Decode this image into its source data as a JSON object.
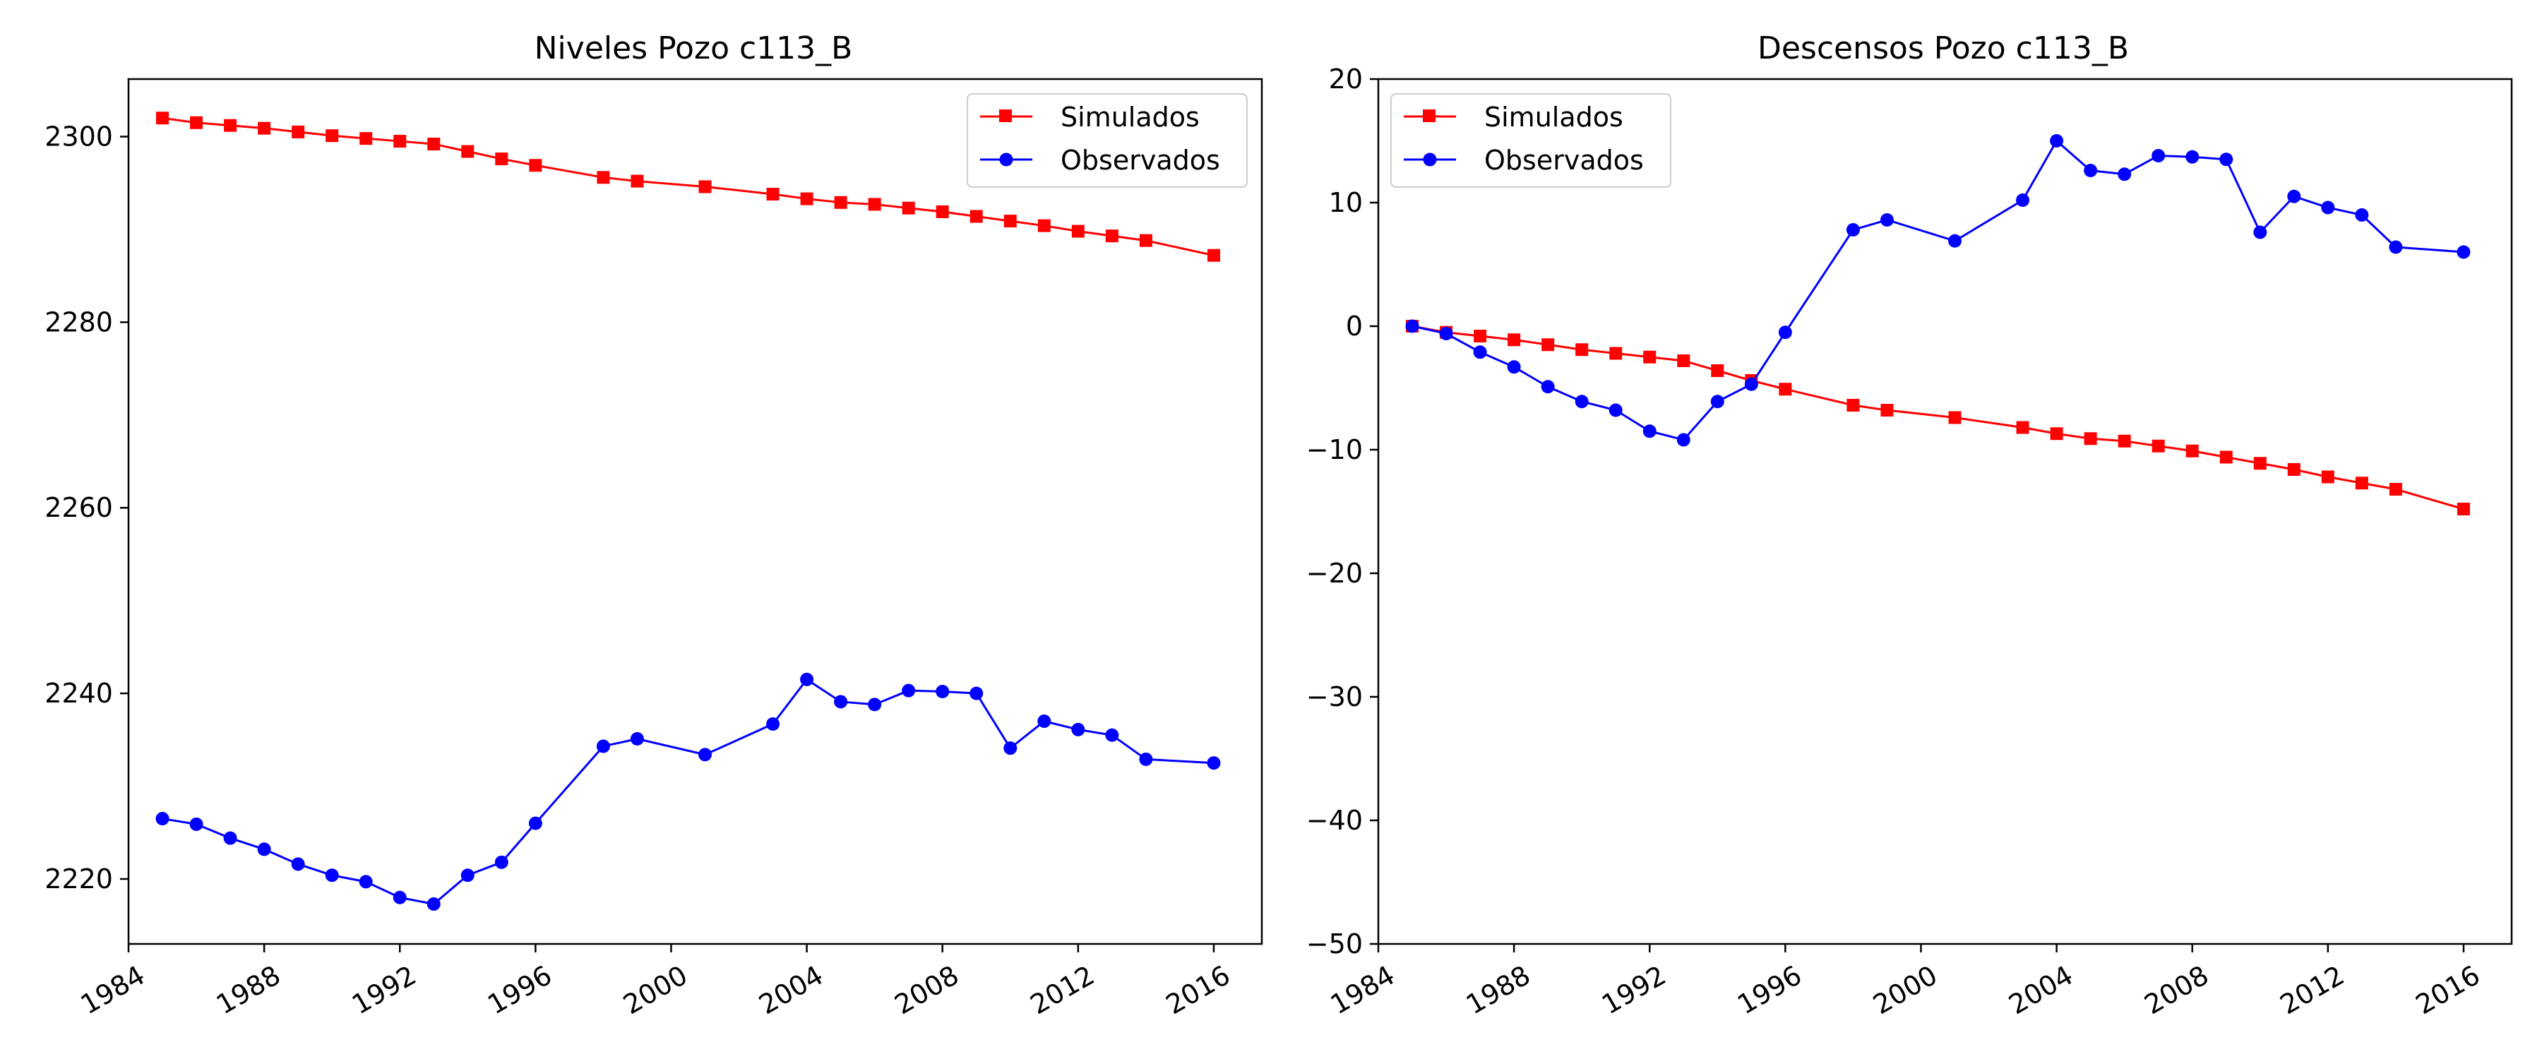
{
  "chart_data": [
    {
      "type": "line",
      "title": "Niveles Pozo c113_B",
      "xlabel": "",
      "ylabel": "",
      "xlim": [
        "1984-01-01",
        "2017-06-01"
      ],
      "ylim": [
        2213,
        2306.2
      ],
      "x_ticks": [
        "1984",
        "1988",
        "1992",
        "1996",
        "2000",
        "2004",
        "2008",
        "2012",
        "2016"
      ],
      "y_ticks": [
        2220,
        2240,
        2260,
        2280,
        2300
      ],
      "legend": "top-right",
      "grid": false,
      "series": [
        {
          "name": "Simulados",
          "color": "#ff0000",
          "marker": "square",
          "x": [
            "1985",
            "1986",
            "1987",
            "1988",
            "1989",
            "1990",
            "1991",
            "1992",
            "1993",
            "1994",
            "1995",
            "1996",
            "1998",
            "1999",
            "2001",
            "2003",
            "2004",
            "2005",
            "2006",
            "2007",
            "2008",
            "2009",
            "2010",
            "2011",
            "2012",
            "2013",
            "2014",
            "2016"
          ],
          "values": [
            2302.0,
            2301.5,
            2301.2,
            2300.9,
            2300.5,
            2300.1,
            2299.8,
            2299.5,
            2299.2,
            2298.4,
            2297.6,
            2296.9,
            2295.6,
            2295.2,
            2294.6,
            2293.8,
            2293.3,
            2292.9,
            2292.7,
            2292.3,
            2291.9,
            2291.4,
            2290.9,
            2290.4,
            2289.8,
            2289.3,
            2288.8,
            2287.2
          ]
        },
        {
          "name": "Observados",
          "color": "#0000ff",
          "marker": "circle",
          "x": [
            "1985",
            "1986",
            "1987",
            "1988",
            "1989",
            "1990",
            "1991",
            "1992",
            "1993",
            "1994",
            "1995",
            "1996",
            "1998",
            "1999",
            "2001",
            "2003",
            "2004",
            "2005",
            "2006",
            "2007",
            "2008",
            "2009",
            "2010",
            "2011",
            "2012",
            "2013",
            "2014",
            "2016"
          ],
          "values": [
            2226.5,
            2225.9,
            2224.4,
            2223.2,
            2221.6,
            2220.4,
            2219.7,
            2218.0,
            2217.3,
            2220.4,
            2221.8,
            2226.0,
            2234.3,
            2235.1,
            2233.4,
            2236.7,
            2241.5,
            2239.1,
            2238.8,
            2240.3,
            2240.2,
            2240.0,
            2234.1,
            2237.0,
            2236.1,
            2235.5,
            2232.9,
            2232.5
          ]
        }
      ]
    },
    {
      "type": "line",
      "title": "Descensos Pozo c113_B",
      "xlabel": "",
      "ylabel": "",
      "xlim": [
        "1984-01-01",
        "2017-06-01"
      ],
      "ylim": [
        -50,
        20
      ],
      "x_ticks": [
        "1984",
        "1988",
        "1992",
        "1996",
        "2000",
        "2004",
        "2008",
        "2012",
        "2016"
      ],
      "y_ticks": [
        -50,
        -40,
        -30,
        -20,
        -10,
        0,
        10,
        20
      ],
      "legend": "top-left",
      "grid": false,
      "series": [
        {
          "name": "Simulados",
          "color": "#ff0000",
          "marker": "square",
          "x": [
            "1985",
            "1986",
            "1987",
            "1988",
            "1989",
            "1990",
            "1991",
            "1992",
            "1993",
            "1994",
            "1995",
            "1996",
            "1998",
            "1999",
            "2001",
            "2003",
            "2004",
            "2005",
            "2006",
            "2007",
            "2008",
            "2009",
            "2010",
            "2011",
            "2012",
            "2013",
            "2014",
            "2016"
          ],
          "values": [
            0.0,
            -0.5,
            -0.8,
            -1.1,
            -1.5,
            -1.9,
            -2.2,
            -2.5,
            -2.8,
            -3.6,
            -4.4,
            -5.1,
            -6.4,
            -6.8,
            -7.4,
            -8.2,
            -8.7,
            -9.1,
            -9.3,
            -9.7,
            -10.1,
            -10.6,
            -11.1,
            -11.6,
            -12.2,
            -12.7,
            -13.2,
            -14.8
          ]
        },
        {
          "name": "Observados",
          "color": "#0000ff",
          "marker": "circle",
          "x": [
            "1985",
            "1986",
            "1987",
            "1988",
            "1989",
            "1990",
            "1991",
            "1992",
            "1993",
            "1994",
            "1995",
            "1996",
            "1998",
            "1999",
            "2001",
            "2003",
            "2004",
            "2005",
            "2006",
            "2007",
            "2008",
            "2009",
            "2010",
            "2011",
            "2012",
            "2013",
            "2014",
            "2016"
          ],
          "values": [
            0.0,
            -0.6,
            -2.1,
            -3.3,
            -4.9,
            -6.1,
            -6.8,
            -8.5,
            -9.2,
            -6.1,
            -4.7,
            -0.5,
            7.8,
            8.6,
            6.9,
            10.2,
            15.0,
            12.6,
            12.3,
            13.8,
            13.7,
            13.5,
            7.6,
            10.5,
            9.6,
            9.0,
            6.4,
            6.0
          ]
        }
      ]
    }
  ]
}
